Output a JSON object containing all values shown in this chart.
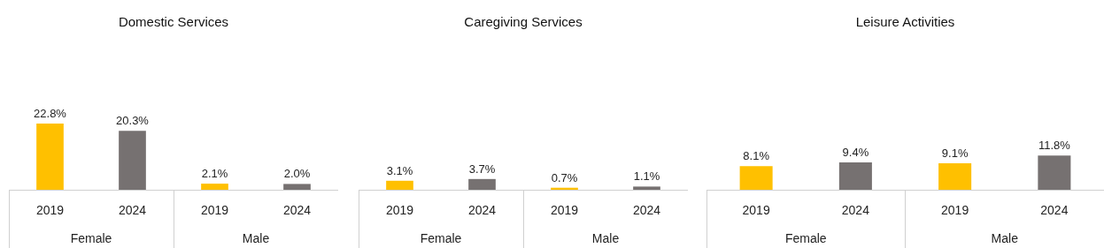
{
  "chart_data": [
    {
      "type": "bar",
      "title": "Domestic Services",
      "categories": [
        "2019",
        "2024",
        "2019",
        "2024"
      ],
      "annotations": [
        "Female",
        "Male"
      ],
      "values": [
        22.8,
        20.3,
        2.1,
        2.0
      ],
      "value_labels": [
        "22.8%",
        "20.3%",
        "2.1%",
        "2.0%"
      ],
      "colors": [
        "#ffc000",
        "#767171",
        "#ffc000",
        "#767171"
      ]
    },
    {
      "type": "bar",
      "title": "Caregiving Services",
      "categories": [
        "2019",
        "2024",
        "2019",
        "2024"
      ],
      "annotations": [
        "Female",
        "Male"
      ],
      "values": [
        3.1,
        3.7,
        0.7,
        1.1
      ],
      "value_labels": [
        "3.1%",
        "3.7%",
        "0.7%",
        "1.1%"
      ],
      "colors": [
        "#ffc000",
        "#767171",
        "#ffc000",
        "#767171"
      ]
    },
    {
      "type": "bar",
      "title": "Leisure Activities",
      "categories": [
        "2019",
        "2024",
        "2019",
        "2024"
      ],
      "annotations": [
        "Female",
        "Male"
      ],
      "values": [
        8.1,
        9.4,
        9.1,
        11.8
      ],
      "value_labels": [
        "8.1%",
        "9.4%",
        "9.1%",
        "11.8%"
      ],
      "colors": [
        "#ffc000",
        "#767171",
        "#ffc000",
        "#767171"
      ]
    }
  ]
}
